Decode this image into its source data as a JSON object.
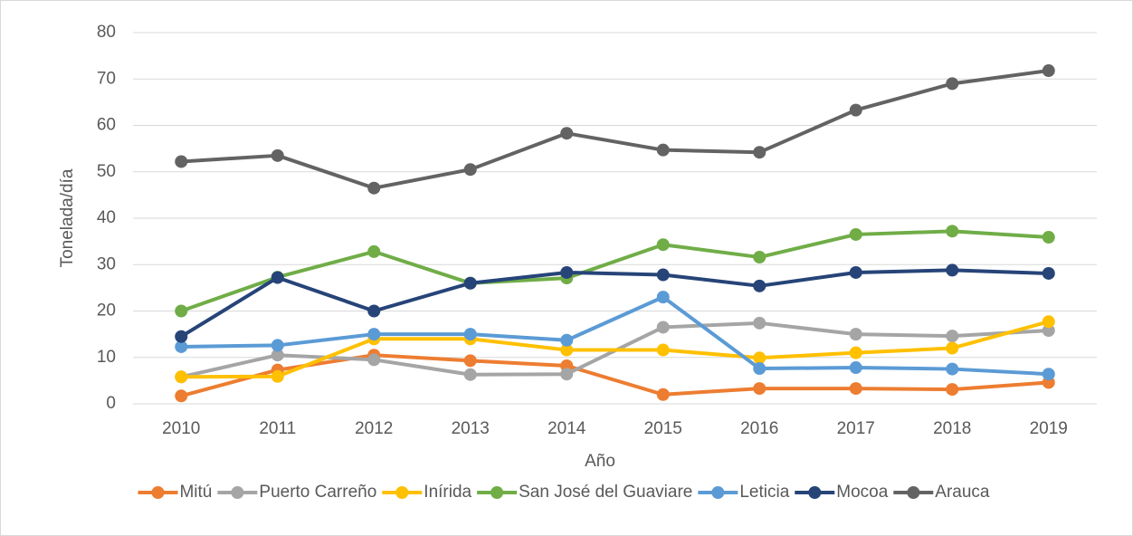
{
  "chart_data": {
    "type": "line",
    "categories": [
      "2010",
      "2011",
      "2012",
      "2013",
      "2014",
      "2015",
      "2016",
      "2017",
      "2018",
      "2019"
    ],
    "series": [
      {
        "name": "Mitú",
        "color": "#ed7d31",
        "values": [
          1.7,
          7.3,
          10.5,
          9.3,
          8.2,
          2,
          3.3,
          3.3,
          3.1,
          4.6
        ]
      },
      {
        "name": "Puerto Carreño",
        "color": "#a5a5a5",
        "values": [
          5.8,
          10.5,
          9.5,
          6.3,
          6.4,
          16.5,
          17.4,
          15,
          14.6,
          15.8
        ]
      },
      {
        "name": "Inírida",
        "color": "#ffc000",
        "values": [
          5.8,
          5.9,
          14,
          14,
          11.6,
          11.6,
          9.9,
          11,
          12,
          17.7
        ]
      },
      {
        "name": "San José del Guaviare",
        "color": "#70ad47",
        "values": [
          20,
          27.3,
          32.8,
          26,
          27.1,
          34.3,
          31.6,
          36.5,
          37.2,
          35.9
        ]
      },
      {
        "name": "Leticia",
        "color": "#5b9bd5",
        "values": [
          12.3,
          12.6,
          15,
          15,
          13.7,
          23,
          7.6,
          7.8,
          7.5,
          6.4
        ]
      },
      {
        "name": "Mocoa",
        "color": "#264478",
        "values": [
          14.5,
          27.2,
          20,
          26,
          28.3,
          27.8,
          25.4,
          28.3,
          28.8,
          28.1
        ]
      },
      {
        "name": "Arauca",
        "color": "#636363",
        "values": [
          52.2,
          53.5,
          46.5,
          50.5,
          58.3,
          54.7,
          54.2,
          63.3,
          69,
          71.8
        ]
      }
    ],
    "ylim": [
      0,
      80
    ],
    "yticks": [
      0,
      10,
      20,
      30,
      40,
      50,
      60,
      70,
      80
    ],
    "grid": true,
    "xlabel": "Año",
    "ylabel": "Tonelada/día",
    "legend": "bottom"
  }
}
